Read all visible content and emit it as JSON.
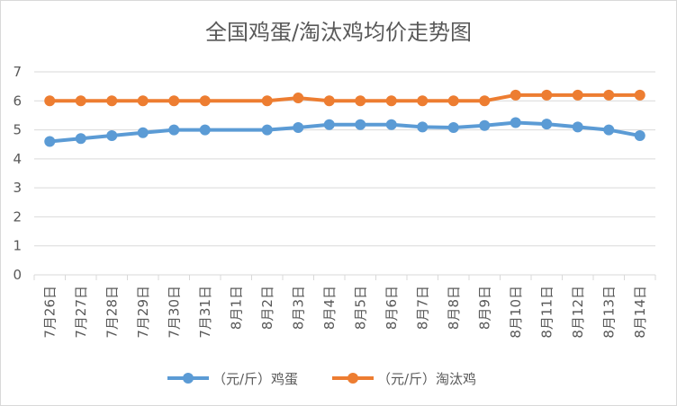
{
  "chart_data": {
    "type": "line",
    "title": "全国鸡蛋/淘汰鸡均价走势图",
    "categories": [
      "7月26日",
      "7月27日",
      "7月28日",
      "7月29日",
      "7月30日",
      "7月31日",
      "8月1日",
      "8月2日",
      "8月3日",
      "8月4日",
      "8月5日",
      "8月6日",
      "8月7日",
      "8月8日",
      "8月9日",
      "8月10日",
      "8月11日",
      "8月12日",
      "8月13日",
      "8月14日"
    ],
    "ylim": [
      0,
      7
    ],
    "yticks": [
      "0",
      "1",
      "2",
      "3",
      "4",
      "5",
      "6",
      "7"
    ],
    "grid": true,
    "legend_position": "bottom",
    "series": [
      {
        "name": "（元/斤）鸡蛋",
        "color": "#5b9bd5",
        "values": [
          4.6,
          4.7,
          4.8,
          4.9,
          5.0,
          5.0,
          null,
          5.0,
          5.08,
          5.18,
          5.18,
          5.18,
          5.1,
          5.08,
          5.15,
          5.25,
          5.2,
          5.1,
          5.0,
          4.8
        ]
      },
      {
        "name": "（元/斤）淘汰鸡",
        "color": "#ed7d31",
        "values": [
          6.0,
          6.0,
          6.0,
          6.0,
          6.0,
          6.0,
          null,
          6.0,
          6.1,
          6.0,
          6.0,
          6.0,
          6.0,
          6.0,
          6.0,
          6.2,
          6.2,
          6.2,
          6.2,
          6.2
        ]
      }
    ]
  }
}
